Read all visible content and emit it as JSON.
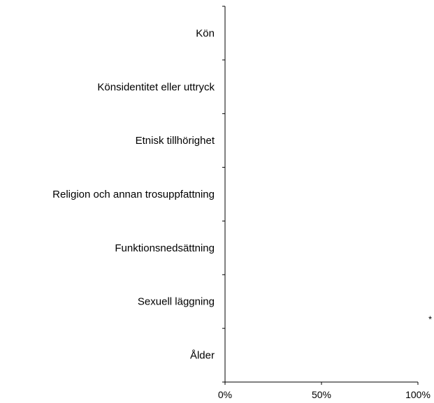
{
  "chart_data": {
    "type": "bar",
    "orientation": "horizontal",
    "categories": [
      "Kön",
      "Könsidentitet eller uttryck",
      "Etnisk tillhörighet",
      "Religion och annan trosuppfattning",
      "Funktionsnedsättning",
      "Sexuell läggning",
      "Ålder"
    ],
    "values": [
      null,
      null,
      null,
      null,
      null,
      null,
      null
    ],
    "x_ticks": [
      "0%",
      "50%",
      "100%"
    ],
    "xlim": [
      0,
      100
    ],
    "grid": false,
    "annotations": [
      {
        "text": "*",
        "category": "Sexuell läggning"
      }
    ],
    "colors": {
      "axis": "#000000",
      "text": "#000000"
    }
  }
}
